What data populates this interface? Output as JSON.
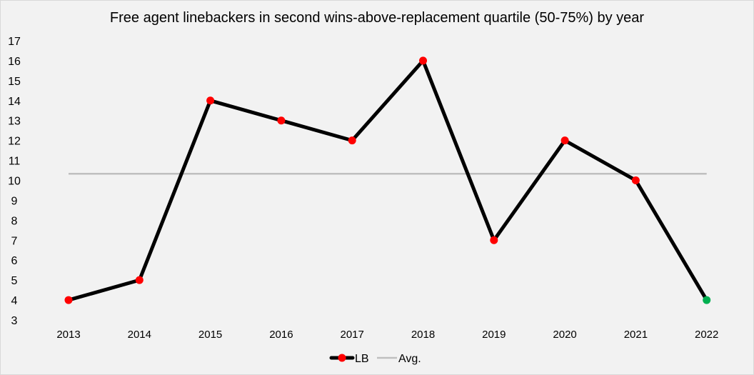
{
  "chart_data": {
    "type": "line",
    "title": "Free agent linebackers in second wins-above-replacement quartile (50-75%) by year",
    "categories": [
      "2013",
      "2014",
      "2015",
      "2016",
      "2017",
      "2018",
      "2019",
      "2020",
      "2021",
      "2022"
    ],
    "series": [
      {
        "name": "LB",
        "values": [
          4,
          5,
          14,
          13,
          12,
          16,
          7,
          12,
          10,
          4
        ],
        "color": "#000000",
        "marker_color": "#ff0000",
        "last_marker_color": "#00b050"
      },
      {
        "name": "Avg.",
        "values": [
          10.33,
          10.33,
          10.33,
          10.33,
          10.33,
          10.33,
          10.33,
          10.33,
          10.33,
          10.33
        ],
        "color": "#bfbfbf"
      }
    ],
    "ylim": [
      3,
      17
    ],
    "yticks": [
      "3",
      "4",
      "5",
      "6",
      "7",
      "8",
      "9",
      "10",
      "11",
      "12",
      "13",
      "14",
      "15",
      "16",
      "17"
    ],
    "grid": false,
    "legend": "bottom"
  }
}
